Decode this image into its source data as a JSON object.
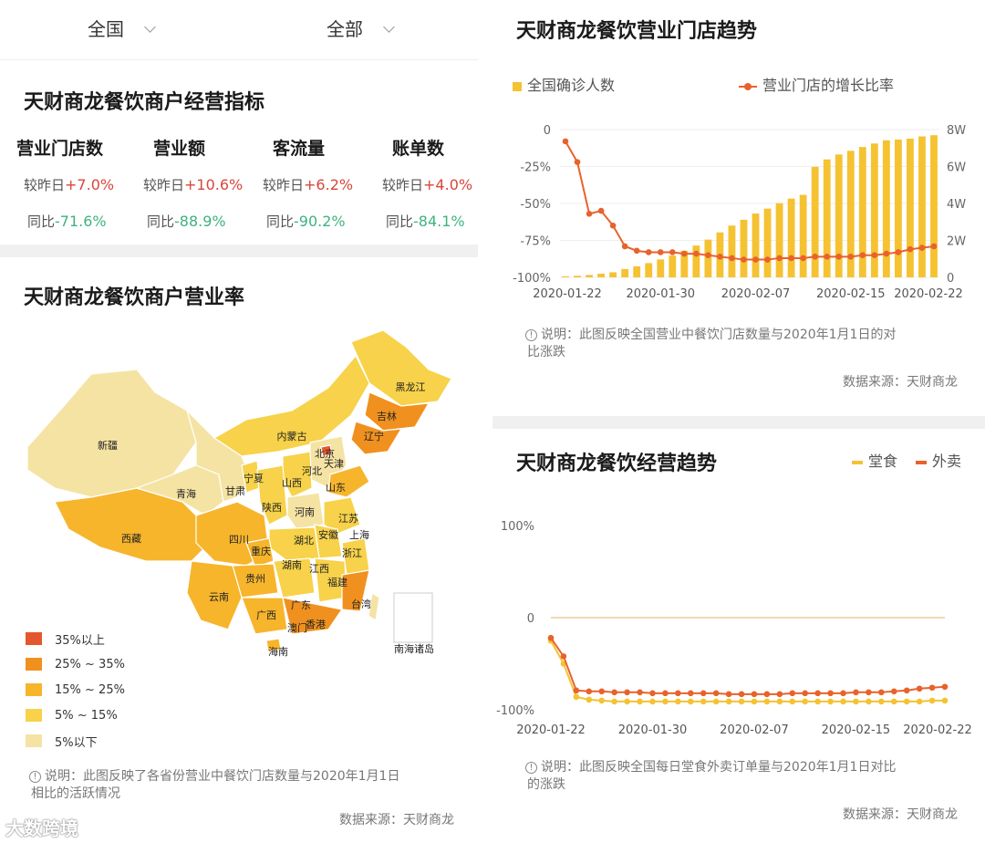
{
  "filters": {
    "region": "全国",
    "category": "全部"
  },
  "kpi_section": {
    "title": "天财商龙餐饮商户经营指标",
    "items": [
      {
        "label": "营业门店数",
        "dod_prefix": "较昨日",
        "dod_value": "+7.0%",
        "yoy_prefix": "同比",
        "yoy_value": "-71.6%"
      },
      {
        "label": "营业额",
        "dod_prefix": "较昨日",
        "dod_value": "+10.6%",
        "yoy_prefix": "同比",
        "yoy_value": "-88.9%"
      },
      {
        "label": "客流量",
        "dod_prefix": "较昨日",
        "dod_value": "+6.2%",
        "yoy_prefix": "同比",
        "yoy_value": "-90.2%"
      },
      {
        "label": "账单数",
        "dod_prefix": "较昨日",
        "dod_value": "+4.0%",
        "yoy_prefix": "同比",
        "yoy_value": "-84.1%"
      }
    ]
  },
  "map_section": {
    "title": "天财商龙餐饮商户营业率",
    "provinces": [
      "黑龙江",
      "吉林",
      "辽宁",
      "内蒙古",
      "北京",
      "天津",
      "新疆",
      "宁夏",
      "山西",
      "河北",
      "甘肃",
      "青海",
      "陕西",
      "山东",
      "河南",
      "江苏",
      "西藏",
      "四川",
      "重庆",
      "安徽",
      "上海",
      "湖北",
      "浙江",
      "湖南",
      "江西",
      "贵州",
      "福建",
      "云南",
      "广西",
      "广东",
      "台湾",
      "澳门",
      "香港",
      "海南",
      "南海诸岛"
    ],
    "legend": [
      {
        "label": "35%以上",
        "color": "#e4572e"
      },
      {
        "label": "25% ~ 35%",
        "color": "#f0911f"
      },
      {
        "label": "15% ~ 25%",
        "color": "#f7b52c"
      },
      {
        "label": "5% ~ 15%",
        "color": "#f7d24a"
      },
      {
        "label": "5%以下",
        "color": "#f5e3a3"
      }
    ],
    "note": "说明：此图反映了各省份营业中餐饮门店数量与2020年1月1日相比的活跃情况",
    "note_line1": "说明：此图反映了各省份营业中餐饮门店数量与2020年1月1日",
    "note_line2": "相比的活跃情况",
    "source": "数据来源：天财商龙"
  },
  "chart_data": [
    {
      "type": "bar+line",
      "title": "天财商龙餐饮营业门店趋势",
      "x": [
        "2020-01-22",
        "2020-01-23",
        "2020-01-24",
        "2020-01-25",
        "2020-01-26",
        "2020-01-27",
        "2020-01-28",
        "2020-01-29",
        "2020-01-30",
        "2020-01-31",
        "2020-02-01",
        "2020-02-02",
        "2020-02-03",
        "2020-02-04",
        "2020-02-05",
        "2020-02-06",
        "2020-02-07",
        "2020-02-08",
        "2020-02-09",
        "2020-02-10",
        "2020-02-11",
        "2020-02-12",
        "2020-02-13",
        "2020-02-14",
        "2020-02-15",
        "2020-02-16",
        "2020-02-17",
        "2020-02-18",
        "2020-02-19",
        "2020-02-20",
        "2020-02-21",
        "2020-02-22"
      ],
      "x_ticks": [
        "2020-01-22",
        "2020-01-30",
        "2020-02-07",
        "2020-02-15",
        "2020-02-22"
      ],
      "series": [
        {
          "name": "全国确诊人数",
          "kind": "bar",
          "axis": "right",
          "color": "#f5c232",
          "values": [
            571,
            830,
            1287,
            1975,
            2744,
            4515,
            5974,
            7711,
            9692,
            11791,
            14380,
            17205,
            20438,
            24324,
            28018,
            31161,
            34546,
            37198,
            40171,
            42638,
            44653,
            59804,
            63851,
            66492,
            68500,
            70548,
            72436,
            74185,
            74576,
            75077,
            76288,
            76936
          ]
        },
        {
          "name": "营业门店的增长比率",
          "kind": "line",
          "axis": "left",
          "color": "#e8622c",
          "values": [
            -8,
            -22,
            -57,
            -55,
            -65,
            -79,
            -82,
            -83,
            -83,
            -83,
            -84,
            -84,
            -85,
            -86,
            -87,
            -88,
            -88,
            -88,
            -87,
            -87,
            -87,
            -86,
            -86,
            -86,
            -86,
            -85,
            -85,
            -84,
            -83,
            -81,
            -80,
            -79
          ]
        }
      ],
      "y_left_ticks": [
        "0",
        "-25%",
        "-50%",
        "-75%",
        "-100%"
      ],
      "y_left_range": [
        -100,
        0
      ],
      "y_right_ticks": [
        "8W",
        "6W",
        "4W",
        "2W",
        "0"
      ],
      "y_right_range": [
        0,
        80000
      ],
      "note_line1": "说明：此图反映全国营业中餐饮门店数量与2020年1月1日的对",
      "note_line2": "比涨跌",
      "source": "数据来源：天财商龙"
    },
    {
      "type": "line",
      "title": "天财商龙餐饮经营趋势",
      "x": [
        "2020-01-22",
        "2020-01-23",
        "2020-01-24",
        "2020-01-25",
        "2020-01-26",
        "2020-01-27",
        "2020-01-28",
        "2020-01-29",
        "2020-01-30",
        "2020-01-31",
        "2020-02-01",
        "2020-02-02",
        "2020-02-03",
        "2020-02-04",
        "2020-02-05",
        "2020-02-06",
        "2020-02-07",
        "2020-02-08",
        "2020-02-09",
        "2020-02-10",
        "2020-02-11",
        "2020-02-12",
        "2020-02-13",
        "2020-02-14",
        "2020-02-15",
        "2020-02-16",
        "2020-02-17",
        "2020-02-18",
        "2020-02-19",
        "2020-02-20",
        "2020-02-21",
        "2020-02-22"
      ],
      "x_ticks": [
        "2020-01-22",
        "2020-01-30",
        "2020-02-07",
        "2020-02-15",
        "2020-02-22"
      ],
      "series": [
        {
          "name": "堂食",
          "color": "#f5c232",
          "values": [
            -25,
            -50,
            -86,
            -89,
            -90,
            -91,
            -91,
            -91,
            -91,
            -91,
            -91,
            -91,
            -91,
            -91,
            -91,
            -91,
            -91,
            -91,
            -91,
            -91,
            -91,
            -91,
            -91,
            -91,
            -91,
            -91,
            -91,
            -91,
            -91,
            -91,
            -90,
            -90
          ]
        },
        {
          "name": "外卖",
          "color": "#e8622c",
          "values": [
            -22,
            -42,
            -79,
            -80,
            -80,
            -81,
            -81,
            -81,
            -82,
            -82,
            -82,
            -82,
            -82,
            -82,
            -83,
            -83,
            -83,
            -83,
            -83,
            -82,
            -82,
            -82,
            -82,
            -82,
            -81,
            -81,
            -81,
            -80,
            -79,
            -77,
            -76,
            -75
          ]
        }
      ],
      "y_ticks": [
        "100%",
        "0",
        "-100%"
      ],
      "y_range": [
        -100,
        100
      ],
      "note_line1": "说明：此图反映全国每日堂食外卖订单量与2020年1月1日对比",
      "note_line2": "的涨跌",
      "source": "数据来源：天财商龙"
    }
  ],
  "watermark": "大数跨境"
}
